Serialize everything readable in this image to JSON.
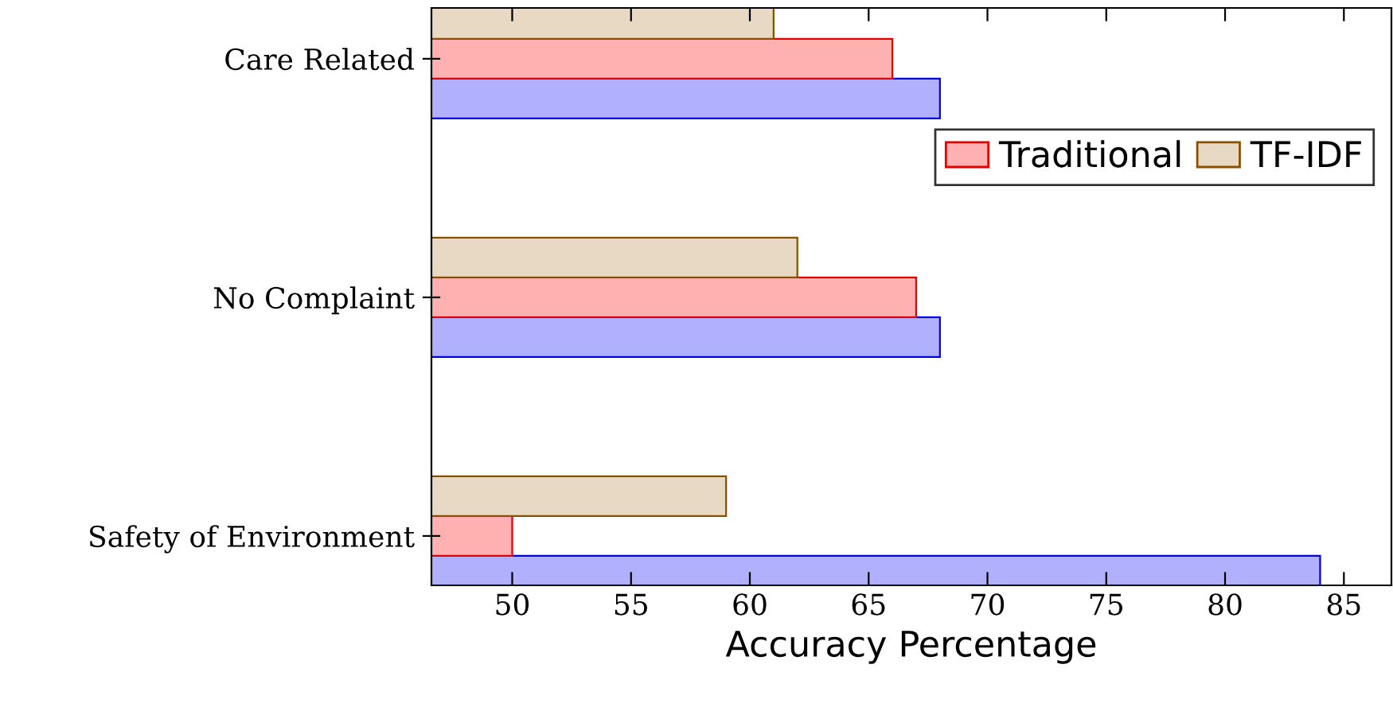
{
  "chart_data": {
    "type": "bar",
    "orientation": "horizontal",
    "xlabel": "Accuracy Percentage",
    "categories": [
      "Care Related",
      "No Complaint",
      "Safety of Environment"
    ],
    "series": [
      {
        "color": "#b0b0ff",
        "values": [
          68,
          68,
          84
        ]
      },
      {
        "name": "Traditional",
        "color": "#ffb0b0",
        "values": [
          66,
          67,
          50
        ]
      },
      {
        "name": "TF-IDF",
        "color": "#e8d9c5",
        "values": [
          61,
          62,
          59
        ]
      }
    ],
    "xlim": [
      46.6,
      87
    ],
    "xticks": [
      50,
      55,
      60,
      65,
      70,
      75,
      80,
      85
    ],
    "grid": false,
    "legend": "top right"
  }
}
